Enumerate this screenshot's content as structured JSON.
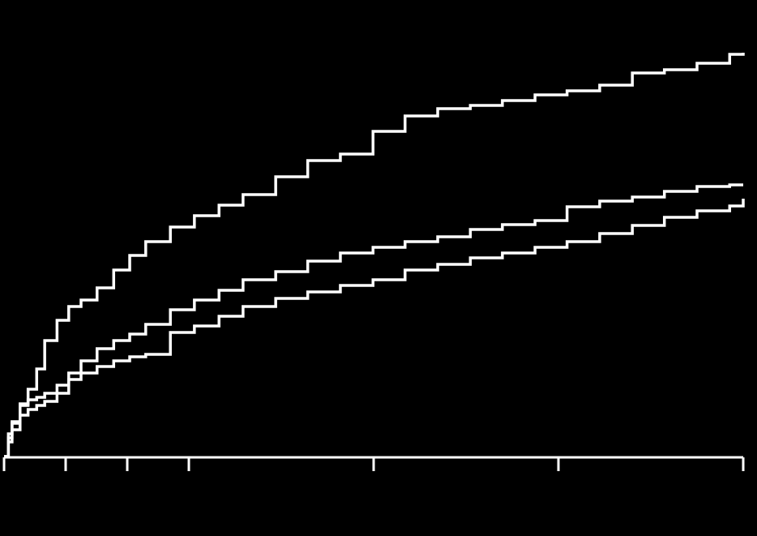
{
  "chart_data": {
    "type": "line",
    "step": true,
    "x": [
      0,
      0.07,
      0.13,
      0.26,
      0.39,
      0.53,
      0.66,
      0.86,
      1.05,
      1.25,
      1.51,
      1.78,
      2.04,
      2.3,
      2.7,
      3.09,
      3.49,
      3.88,
      4.41,
      4.93,
      5.46,
      5.99,
      6.51,
      7.04,
      7.57,
      8.09,
      8.62,
      9.14,
      9.67,
      10.2,
      10.72,
      11.25,
      11.78,
      12
    ],
    "series": [
      {
        "color": "#ffffff",
        "values": [
          0,
          4.6,
          8.2,
          13,
          16.6,
          21.6,
          28.6,
          33.6,
          37,
          38.6,
          41.6,
          46,
          49.6,
          53,
          56.6,
          59.4,
          62,
          64.6,
          69,
          73,
          74.6,
          80.2,
          84,
          85.8,
          86.6,
          87.8,
          89.2,
          90.2,
          91.6,
          94.6,
          95.4,
          97,
          99.2,
          99.6
        ]
      },
      {
        "color": "#ffffff",
        "values": [
          0,
          5.6,
          8.6,
          12.6,
          14,
          14.6,
          15.6,
          17.6,
          20.6,
          23.6,
          26.6,
          28.6,
          30.2,
          32.6,
          36.2,
          38.6,
          41,
          43.6,
          45.6,
          48.2,
          50.2,
          51.6,
          53,
          54.2,
          56,
          57.2,
          58.2,
          61.6,
          63,
          64,
          65.4,
          66.6,
          67,
          67
        ]
      },
      {
        "color": "#ffffff",
        "values": [
          0,
          3.6,
          6.6,
          10.2,
          11.6,
          12.6,
          13.6,
          15.6,
          19,
          20.6,
          22.2,
          23.6,
          24.6,
          25.2,
          30.6,
          32.2,
          34.6,
          37,
          39,
          40.6,
          42.2,
          43.6,
          46,
          47.4,
          49,
          50.2,
          51.6,
          53,
          55,
          57,
          59,
          60.6,
          61.8,
          63.6
        ]
      }
    ],
    "xlim": [
      0,
      12
    ],
    "xticks": [
      0,
      1,
      2,
      3,
      6,
      9,
      12
    ],
    "ylim": [
      0,
      110
    ]
  }
}
